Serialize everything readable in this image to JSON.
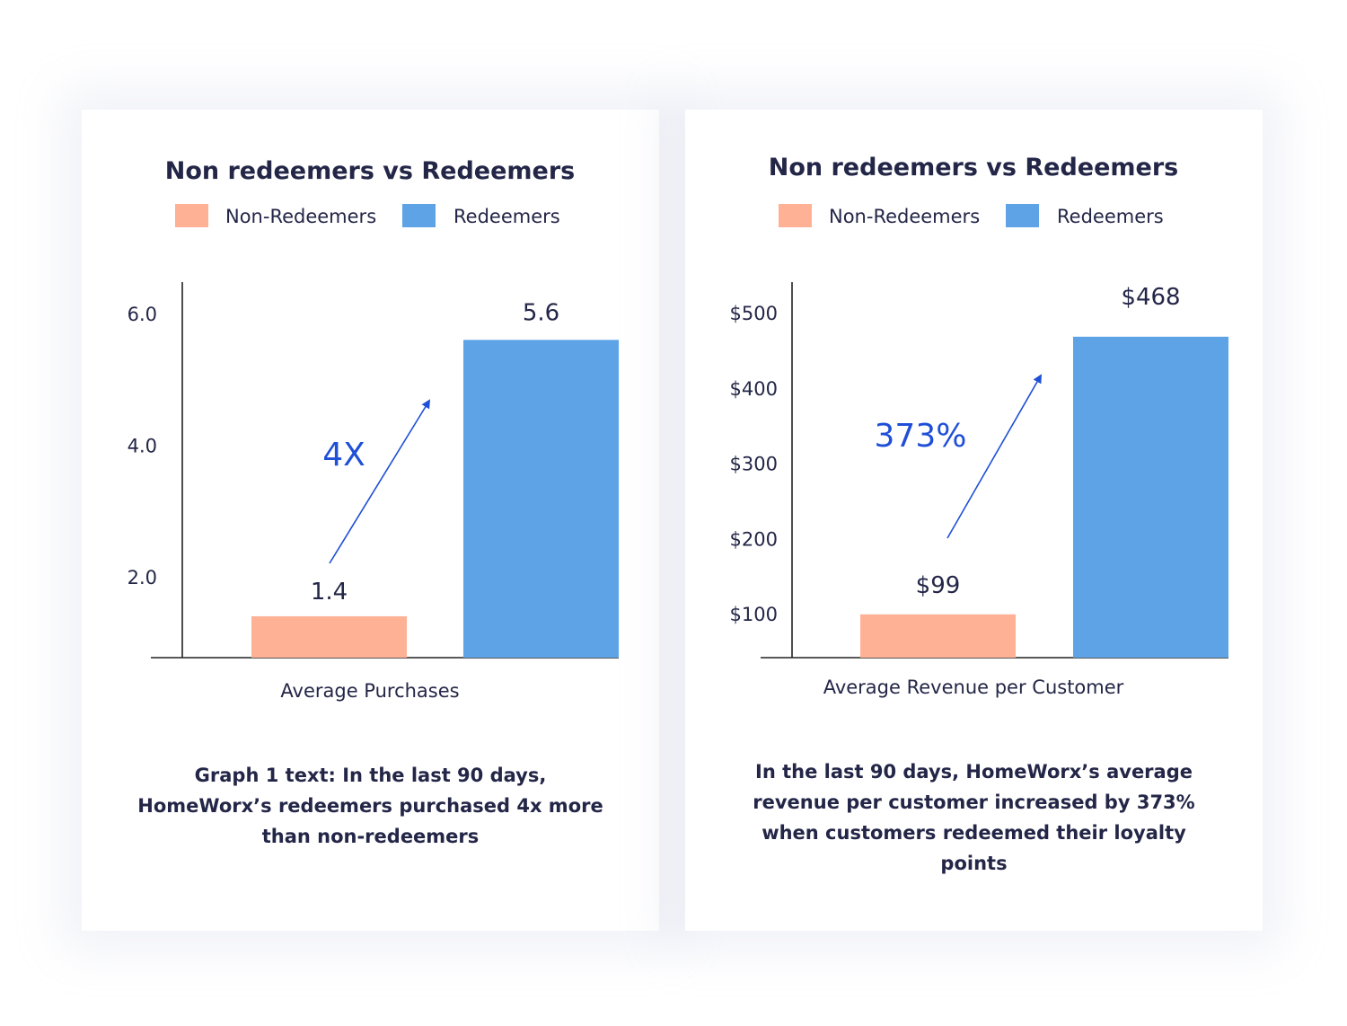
{
  "colors": {
    "non_redeemers": "#ffb196",
    "redeemers": "#5ea3e6",
    "annotation": "#1f4fd6",
    "text": "#232647",
    "axis": "#222222"
  },
  "chart_data": [
    {
      "type": "bar",
      "title": "Non redeemers vs Redeemers",
      "legend": [
        "Non-Redeemers",
        "Redeemers"
      ],
      "legend_position": "top",
      "categories": [
        "Average Purchases"
      ],
      "series": [
        {
          "name": "Non-Redeemers",
          "values": [
            1.4
          ]
        },
        {
          "name": "Redeemers",
          "values": [
            5.6
          ]
        }
      ],
      "data_labels": [
        "1.4",
        "5.6"
      ],
      "yticks": [
        2.0,
        4.0,
        6.0
      ],
      "ytick_labels": [
        "2.0",
        "4.0",
        "6.0"
      ],
      "ylim": [
        0,
        6.5
      ],
      "xlabel": "Average Purchases",
      "ylabel": "",
      "grid": false,
      "annotation": "4X",
      "caption": "Graph 1 text: In the last 90 days, HomeWorx’s redeemers purchased 4x more than non-redeemers"
    },
    {
      "type": "bar",
      "title": "Non redeemers vs Redeemers",
      "legend": [
        "Non-Redeemers",
        "Redeemers"
      ],
      "legend_position": "top",
      "categories": [
        "Average Revenue per Customer"
      ],
      "series": [
        {
          "name": "Non-Redeemers",
          "values": [
            99
          ]
        },
        {
          "name": "Redeemers",
          "values": [
            468
          ]
        }
      ],
      "data_labels": [
        "$99",
        "$468"
      ],
      "yticks": [
        100,
        200,
        300,
        400,
        500
      ],
      "ytick_labels": [
        "$100",
        "$200",
        "$300",
        "$400",
        "$500"
      ],
      "ylim": [
        20,
        520
      ],
      "xlabel": "Average Revenue per Customer",
      "ylabel": "",
      "grid": false,
      "annotation": "373%",
      "caption": "In the last 90 days, HomeWorx’s average revenue per customer increased by 373% when customers redeemed their loyalty points"
    }
  ]
}
